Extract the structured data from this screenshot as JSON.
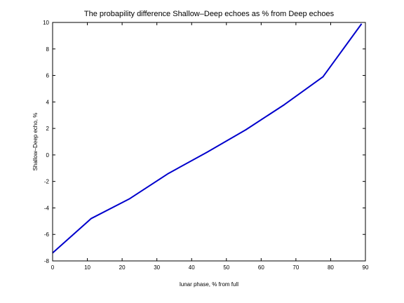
{
  "chart_data": {
    "type": "line",
    "title": "The probapility difference Shallow–Deep echoes as % from Deep echoes",
    "xlabel": "lunar phase, % from full",
    "ylabel": "Shallow–Deep echo, %",
    "xlim": [
      0,
      90
    ],
    "ylim": [
      -8,
      10
    ],
    "x_ticks": [
      0,
      10,
      20,
      30,
      40,
      50,
      60,
      70,
      80,
      90
    ],
    "y_ticks": [
      -8,
      -6,
      -4,
      -2,
      0,
      2,
      4,
      6,
      8,
      10
    ],
    "grid": false,
    "series": [
      {
        "color": "#0000cc",
        "x": [
          0,
          11.1,
          22.2,
          33.3,
          44.4,
          55.6,
          66.7,
          77.8,
          88.9
        ],
        "y": [
          -7.4,
          -4.8,
          -3.3,
          -1.4,
          0.2,
          1.9,
          3.8,
          5.9,
          9.9
        ]
      }
    ]
  }
}
